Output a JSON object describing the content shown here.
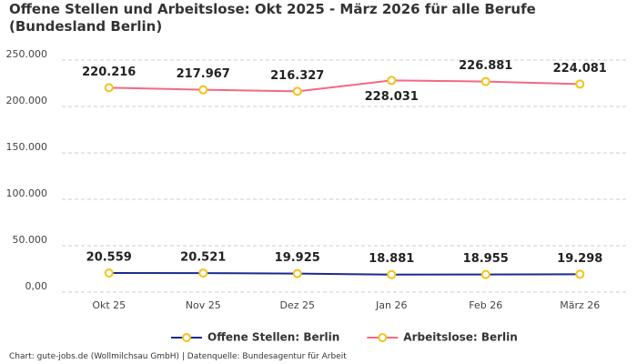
{
  "chart_data": {
    "type": "line",
    "title": "Offene Stellen und Arbeitslose: Okt 2025 - März 2026 für alle Berufe (Bundesland Berlin)",
    "footer": "Chart: gute-jobs.de (Wollmilchsau GmbH) | Datenquelle: Bundesagentur für Arbeit",
    "categories": [
      "Okt 25",
      "Nov 25",
      "Dez 25",
      "Jan 26",
      "Feb 26",
      "März 26"
    ],
    "series": [
      {
        "name": "Offene Stellen: Berlin",
        "color": "#1b2a8f",
        "values": [
          20559,
          20521,
          19925,
          18881,
          18955,
          19298
        ],
        "value_labels": [
          "20.559",
          "20.521",
          "19.925",
          "18.881",
          "18.955",
          "19.298"
        ]
      },
      {
        "name": "Arbeitslose: Berlin",
        "color": "#f26a82",
        "values": [
          220216,
          217967,
          216327,
          228031,
          226881,
          224081
        ],
        "value_labels": [
          "220.216",
          "217.967",
          "216.327",
          "228.031",
          "226.881",
          "224.081"
        ]
      }
    ],
    "marker_color": "#f5c21b",
    "ylim": [
      0,
      250000
    ],
    "yticks": [
      {
        "value": 0,
        "label": "0,00"
      },
      {
        "value": 50000,
        "label": "50.000"
      },
      {
        "value": 100000,
        "label": "100.000"
      },
      {
        "value": 150000,
        "label": "150.000"
      },
      {
        "value": 200000,
        "label": "200.000"
      },
      {
        "value": 250000,
        "label": "250.000"
      }
    ],
    "grid": true
  }
}
